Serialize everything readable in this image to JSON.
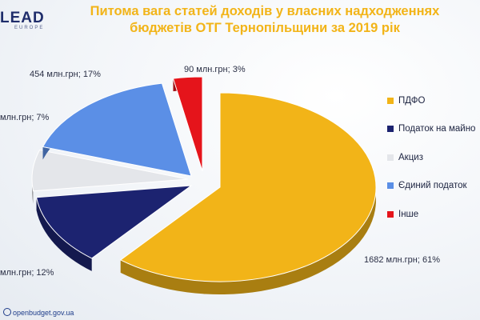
{
  "logo": {
    "main": "LEAD",
    "sub": "EUROPE"
  },
  "title_line1": "Питома вага статей доходів у власних надходженнях",
  "title_line2": "бюджетів ОТГ Тернопільщини за 2019 рік",
  "footer": {
    "source": "openbudget.gov.ua"
  },
  "chart_data": {
    "type": "pie",
    "title": "Питома вага статей доходів у власних надходженнях бюджетів ОТГ Тернопільщини за 2019 рік",
    "legend_position": "right",
    "slices": [
      {
        "name": "ПДФО",
        "value": 61,
        "label": "1682 млн.грн; 61%",
        "color": "#f2b418"
      },
      {
        "name": "Податок на майно",
        "value": 12,
        "label": "млн.грн; 12%",
        "color": "#1c2370"
      },
      {
        "name": "Акциз",
        "value": 7,
        "label": "млн.грн; 7%",
        "color": "#e4e6ea"
      },
      {
        "name": "Єдиний податок",
        "value": 17,
        "label": "454 млн.грн; 17%",
        "color": "#5b8fe6"
      },
      {
        "name": "Інше",
        "value": 3,
        "label": "90 млн.грн; 3%",
        "color": "#e5141b"
      }
    ]
  }
}
